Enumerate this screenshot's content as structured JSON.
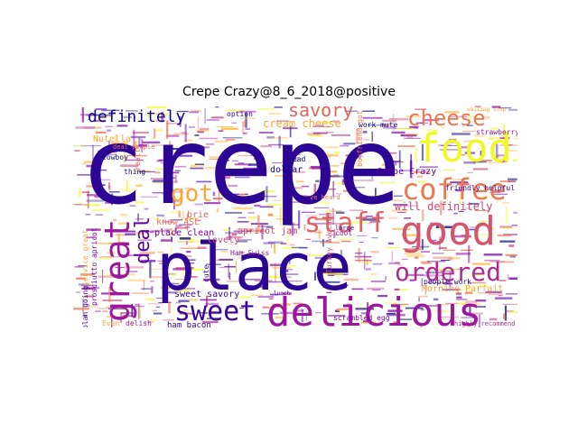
{
  "chart_data": {
    "type": "wordcloud",
    "title": "Crepe Crazy@8_6_2018@positive",
    "colormap": "plasma",
    "words": [
      {
        "text": "crepe",
        "weight": 100,
        "color": "#2d0594"
      },
      {
        "text": "place",
        "weight": 72,
        "color": "#2d0594"
      },
      {
        "text": "food",
        "weight": 48,
        "color": "#f0f921"
      },
      {
        "text": "good",
        "weight": 46,
        "color": "#d5546e"
      },
      {
        "text": "coffee",
        "weight": 40,
        "color": "#ec7853"
      },
      {
        "text": "delicious",
        "weight": 44,
        "color": "#9c179e"
      },
      {
        "text": "great",
        "weight": 38,
        "color": "#9c179e"
      },
      {
        "text": "staff",
        "weight": 30,
        "color": "#e16462"
      },
      {
        "text": "ordered",
        "weight": 28,
        "color": "#b12a90"
      },
      {
        "text": "cheese",
        "weight": 24,
        "color": "#ec7853"
      },
      {
        "text": "sweet",
        "weight": 30,
        "color": "#3b049a"
      },
      {
        "text": "got",
        "weight": 26,
        "color": "#fca636"
      },
      {
        "text": "deal",
        "weight": 22,
        "color": "#5c01a6"
      },
      {
        "text": "savory",
        "weight": 20,
        "color": "#e16462"
      },
      {
        "text": "definitely",
        "weight": 18,
        "color": "#0d0887"
      },
      {
        "text": "cream cheese",
        "weight": 12,
        "color": "#fca636"
      },
      {
        "text": "will definitely",
        "weight": 12,
        "color": "#cc4778"
      },
      {
        "text": "Nutella",
        "weight": 10,
        "color": "#fca636"
      },
      {
        "text": "Crepe Crazy",
        "weight": 10,
        "color": "#5c01a6"
      },
      {
        "text": "apricot jam",
        "weight": 10,
        "color": "#cc4778"
      },
      {
        "text": "lovely",
        "weight": 10,
        "color": "#cc4778"
      },
      {
        "text": "brie",
        "weight": 10,
        "color": "#e16462"
      },
      {
        "text": "dollar",
        "weight": 10,
        "color": "#0d0887"
      },
      {
        "text": "know ASL",
        "weight": 10,
        "color": "#ec7853"
      },
      {
        "text": "place clean",
        "weight": 10,
        "color": "#7e03a8"
      },
      {
        "text": "sweet savory",
        "weight": 10,
        "color": "#3b049a"
      },
      {
        "text": "ham bacon",
        "weight": 9,
        "color": "#3b049a"
      },
      {
        "text": "Morning Parfait",
        "weight": 10,
        "color": "#fca636"
      },
      {
        "text": "scrambled egg",
        "weight": 8,
        "color": "#7e03a8"
      },
      {
        "text": "friendly helpful",
        "weight": 8,
        "color": "#3b049a"
      },
      {
        "text": "people work",
        "weight": 8,
        "color": "#0d0887"
      },
      {
        "text": "Turkey Avocado",
        "weight": 8,
        "color": "#d5546e"
      },
      {
        "text": "strawberry",
        "weight": 8,
        "color": "#9c179e"
      },
      {
        "text": "boyfriend got",
        "weight": 8,
        "color": "#ec7853"
      },
      {
        "text": "work mute",
        "weight": 8,
        "color": "#0d0887"
      },
      {
        "text": "service great",
        "weight": 8,
        "color": "#fca636"
      },
      {
        "text": "prosciutto apricot",
        "weight": 8,
        "color": "#7e03a8"
      },
      {
        "text": "plan going",
        "weight": 8,
        "color": "#3b049a"
      },
      {
        "text": "Cowboy",
        "weight": 8,
        "color": "#0d0887"
      },
      {
        "text": "thing",
        "weight": 8,
        "color": "#0d0887"
      },
      {
        "text": "really",
        "weight": 8,
        "color": "#e16462"
      },
      {
        "text": "option",
        "weight": 8,
        "color": "#3b049a"
      },
      {
        "text": "read",
        "weight": 8,
        "color": "#0d0887"
      },
      {
        "text": "Ham Swiss",
        "weight": 8,
        "color": "#9c179e"
      },
      {
        "text": "cute",
        "weight": 8,
        "color": "#3b049a"
      },
      {
        "text": "cool",
        "weight": 8,
        "color": "#9c179e"
      },
      {
        "text": "Even",
        "weight": 8,
        "color": "#fca636"
      },
      {
        "text": "delish",
        "weight": 8,
        "color": "#9c179e"
      },
      {
        "text": "highly recommend",
        "weight": 7,
        "color": "#b12a90"
      },
      {
        "text": "deal people",
        "weight": 7,
        "color": "#e16462"
      },
      {
        "text": "ve heard",
        "weight": 7,
        "color": "#ec7853"
      },
      {
        "text": "large",
        "weight": 7,
        "color": "#3b049a"
      },
      {
        "text": "lunch",
        "weight": 6,
        "color": "#5c01a6"
      },
      {
        "text": "waiting stop",
        "weight": 6,
        "color": "#fca636"
      }
    ]
  }
}
